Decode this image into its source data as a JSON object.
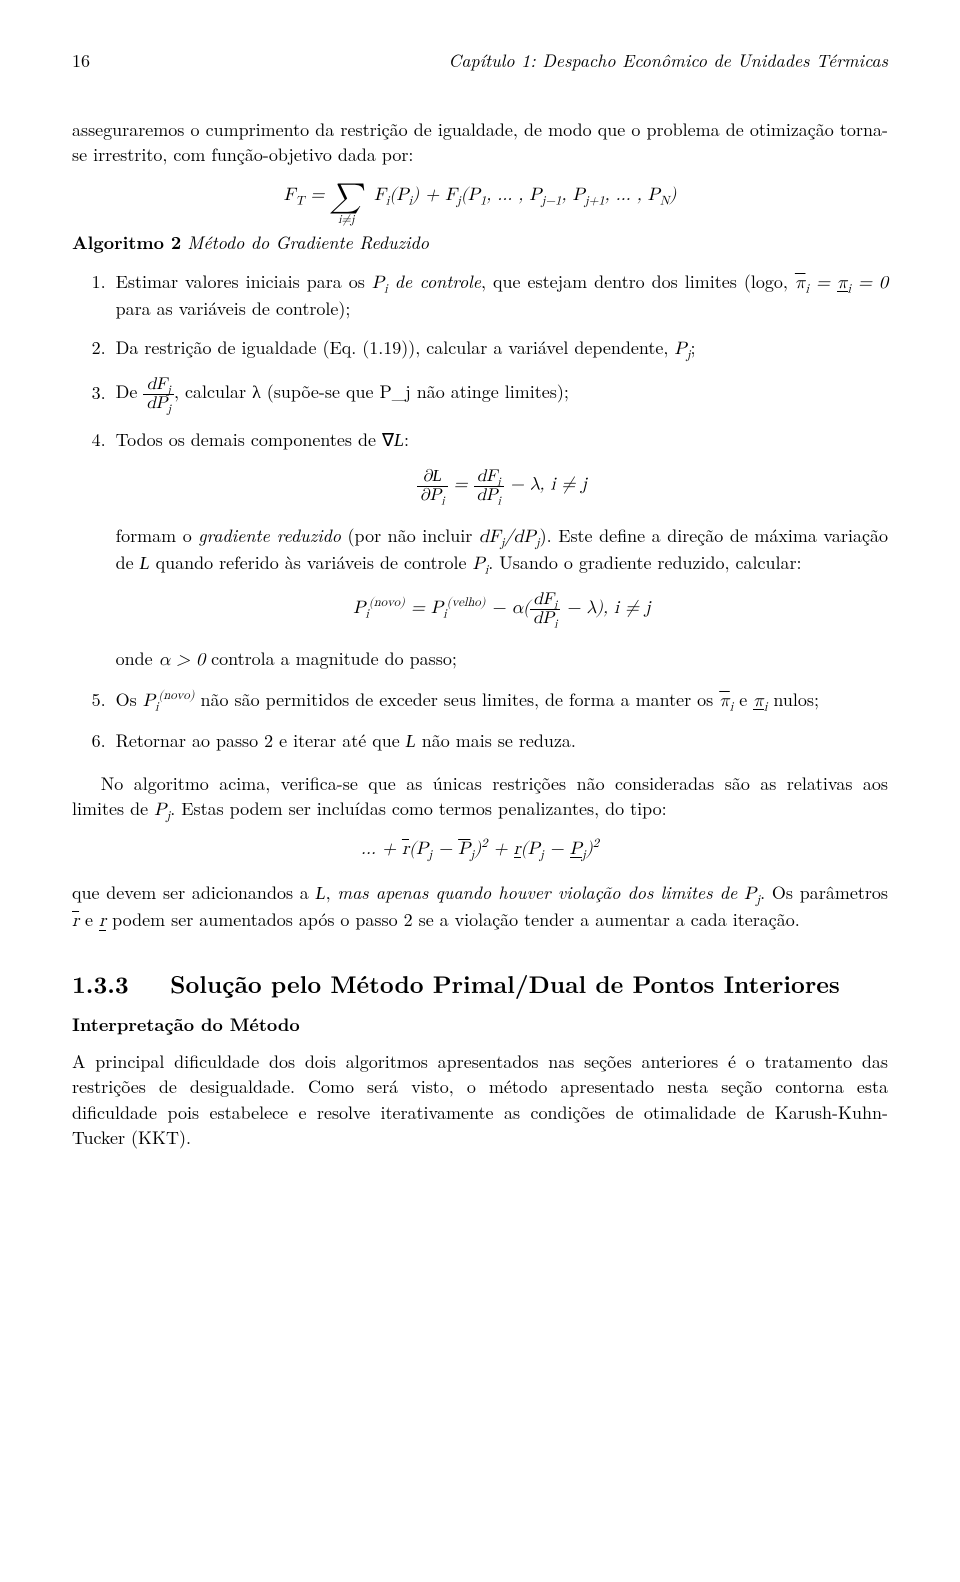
{
  "header": {
    "page_number": "16",
    "running_title": "Capítulo 1: Despacho Econômico de Unidades Térmicas"
  },
  "intro_para": "asseguraremos o cumprimento da restrição de igualdade, de modo que o problema de otimização torna-se irrestrito, com função-objetivo dada por:",
  "eq_ft_lhs": "F",
  "eq_ft_sub": "T",
  "eq_ft_eqsign": " = ",
  "eq_ft_sum_lim": "i≠j",
  "eq_ft_rhs": " F_i(P_i) + F_j(P_1, … , P_{j−1}, P_{j+1}, … , P_N)",
  "algo_label": "Algoritmo 2",
  "algo_title": "Método do Gradiente Reduzido",
  "steps": {
    "s1": "Estimar valores iniciais para os P_i de controle, que estejam dentro dos limites (logo, π̄_i = π_i = 0 para as variáveis de controle);",
    "s2": "Da restrição de igualdade (Eq. (1.19)), calcular a variável dependente, P_j;",
    "s3_pre": "De ",
    "s3_num": "dF_j",
    "s3_den": "dP_j",
    "s3_post": ", calcular λ (supõe-se que P_j não atinge limites);",
    "s4_pre": "Todos os demais componentes de ∇",
    "s4_cal": "L",
    "s4_post": ":",
    "s4_eq_num1": "∂L",
    "s4_eq_den1": "∂P_i",
    "s4_eq_mid": " = ",
    "s4_eq_num2": "dF_i",
    "s4_eq_den2": "dP_i",
    "s4_eq_tail": " − λ,   i ≠ j",
    "s4_para": "formam o gradiente reduzido (por não incluir dF_j/dP_j). Este define a direção de máxima variação de L quando referido às variáveis de controle P_i. Usando o gradiente reduzido, calcular:",
    "s4_eq2_lhs": "P_i^(novo) = P_i^(velho) − α(",
    "s4_eq2_num": "dF_i",
    "s4_eq2_den": "dP_i",
    "s4_eq2_tail": " − λ),   i ≠ j",
    "s4_alpha": "onde α > 0 controla a magnitude do passo;",
    "s5": "Os P_i^(novo) não são permitidos de exceder seus limites, de forma a manter os π̄_i e π_i nulos;",
    "s6": "Retornar ao passo 2 e iterar até que L não mais se reduza."
  },
  "follow_para1": "No algoritmo acima, verifica-se que as únicas restrições não consideradas são as relativas aos limites de P_j. Estas podem ser incluídas como termos penalizantes, do tipo:",
  "eq_penalty": "… + r̄(P_j − P̄_j)² + r(P_j − P_j)²",
  "follow_para2": "que devem ser adicionandos a L, mas apenas quando houver violação dos limites de P_j. Os parâmetros r̄ e r podem ser aumentados após o passo 2 se a violação tender a aumentar a cada iteração.",
  "section": {
    "number": "1.3.3",
    "title": "Solução pelo Método Primal/Dual de Pontos Interiores"
  },
  "subheading": "Interpretação do Método",
  "closing_para": "A principal dificuldade dos dois algoritmos apresentados nas seções anteriores é o tratamento das restrições de desigualdade. Como será visto, o método apresentado nesta seção contorna esta dificuldade pois estabelece e resolve iterativamente as condições de otimalidade de Karush-Kuhn-Tucker (KKT)."
}
